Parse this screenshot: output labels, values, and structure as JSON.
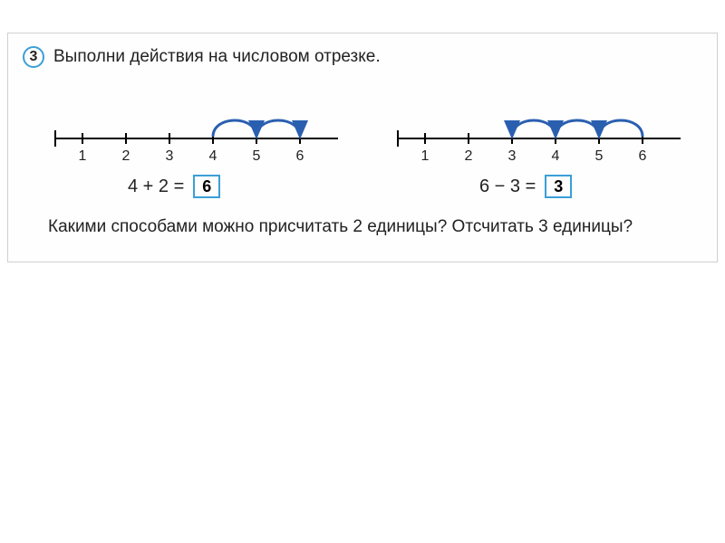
{
  "task": {
    "number": "3",
    "title": "Выполни действия на числовом отрезке.",
    "question": "Какими способами можно присчитать 2 единицы? Отсчитать 3 единицы?"
  },
  "numberLine1": {
    "ticks": [
      "1",
      "2",
      "3",
      "4",
      "5",
      "6"
    ],
    "axis_color": "#000000",
    "tick_color": "#000000",
    "label_color": "#222222",
    "label_fontsize": 16,
    "arcs": [
      {
        "from_tick_index": 3,
        "to_tick_index": 4
      },
      {
        "from_tick_index": 4,
        "to_tick_index": 5
      }
    ],
    "arc_color": "#2a5fb0",
    "arc_stroke_width": 3,
    "arrow_direction": "right"
  },
  "numberLine2": {
    "ticks": [
      "1",
      "2",
      "3",
      "4",
      "5",
      "6"
    ],
    "axis_color": "#000000",
    "tick_color": "#000000",
    "label_color": "#222222",
    "label_fontsize": 16,
    "arcs": [
      {
        "from_tick_index": 5,
        "to_tick_index": 4
      },
      {
        "from_tick_index": 4,
        "to_tick_index": 3
      },
      {
        "from_tick_index": 3,
        "to_tick_index": 2
      }
    ],
    "arc_color": "#2a5fb0",
    "arc_stroke_width": 3,
    "arrow_direction": "left"
  },
  "equation1": {
    "expression": "4 + 2 =",
    "answer": "6",
    "box_border_color": "#3a9fd8"
  },
  "equation2": {
    "expression": "6 − 3 =",
    "answer": "3",
    "box_border_color": "#3a9fd8"
  },
  "colors": {
    "page_bg": "#ffffff",
    "content_bg": "#fdfefd",
    "content_border": "#d0d0d0",
    "circle_border": "#3a9fd8",
    "text": "#222222"
  }
}
